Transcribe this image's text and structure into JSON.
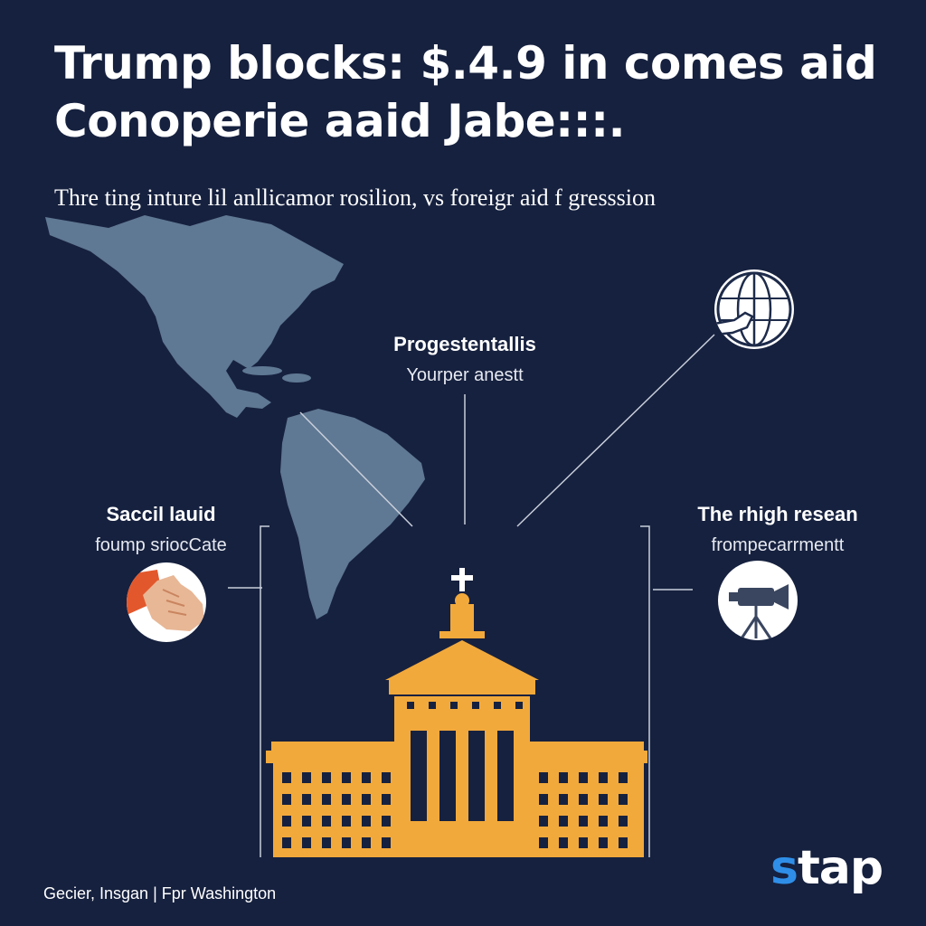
{
  "headline": {
    "line1": "Trump blocks: $.4.9 in comes aid",
    "line2": "Conoperie aaid Jabe:::."
  },
  "subtitle": "Thre ting inture lil anllicamor rosilion, vs foreigr aid f gresssion",
  "center_label": {
    "title": "Progestentallis",
    "sub": "Yourper anestt"
  },
  "left_label": {
    "title": "Saccil lauid",
    "sub": "foump sriocCate"
  },
  "right_label": {
    "title": "The rhigh resean",
    "sub": "frompecarrmentt"
  },
  "icons": {
    "left": "handshake-icon",
    "top_right": "globe-hand-icon",
    "right": "video-camera-icon",
    "building": "capitol-building-icon",
    "map": "americas-map"
  },
  "footer": {
    "credit": "Gecier, Insgan | Fpr Washington",
    "brand_accent": "s",
    "brand_rest": "tap"
  },
  "colors": {
    "background": "#16213f",
    "building": "#f2a93b",
    "map": "#5f7893",
    "brand_accent": "#2f8fe8",
    "handshake": "#e2582c"
  }
}
